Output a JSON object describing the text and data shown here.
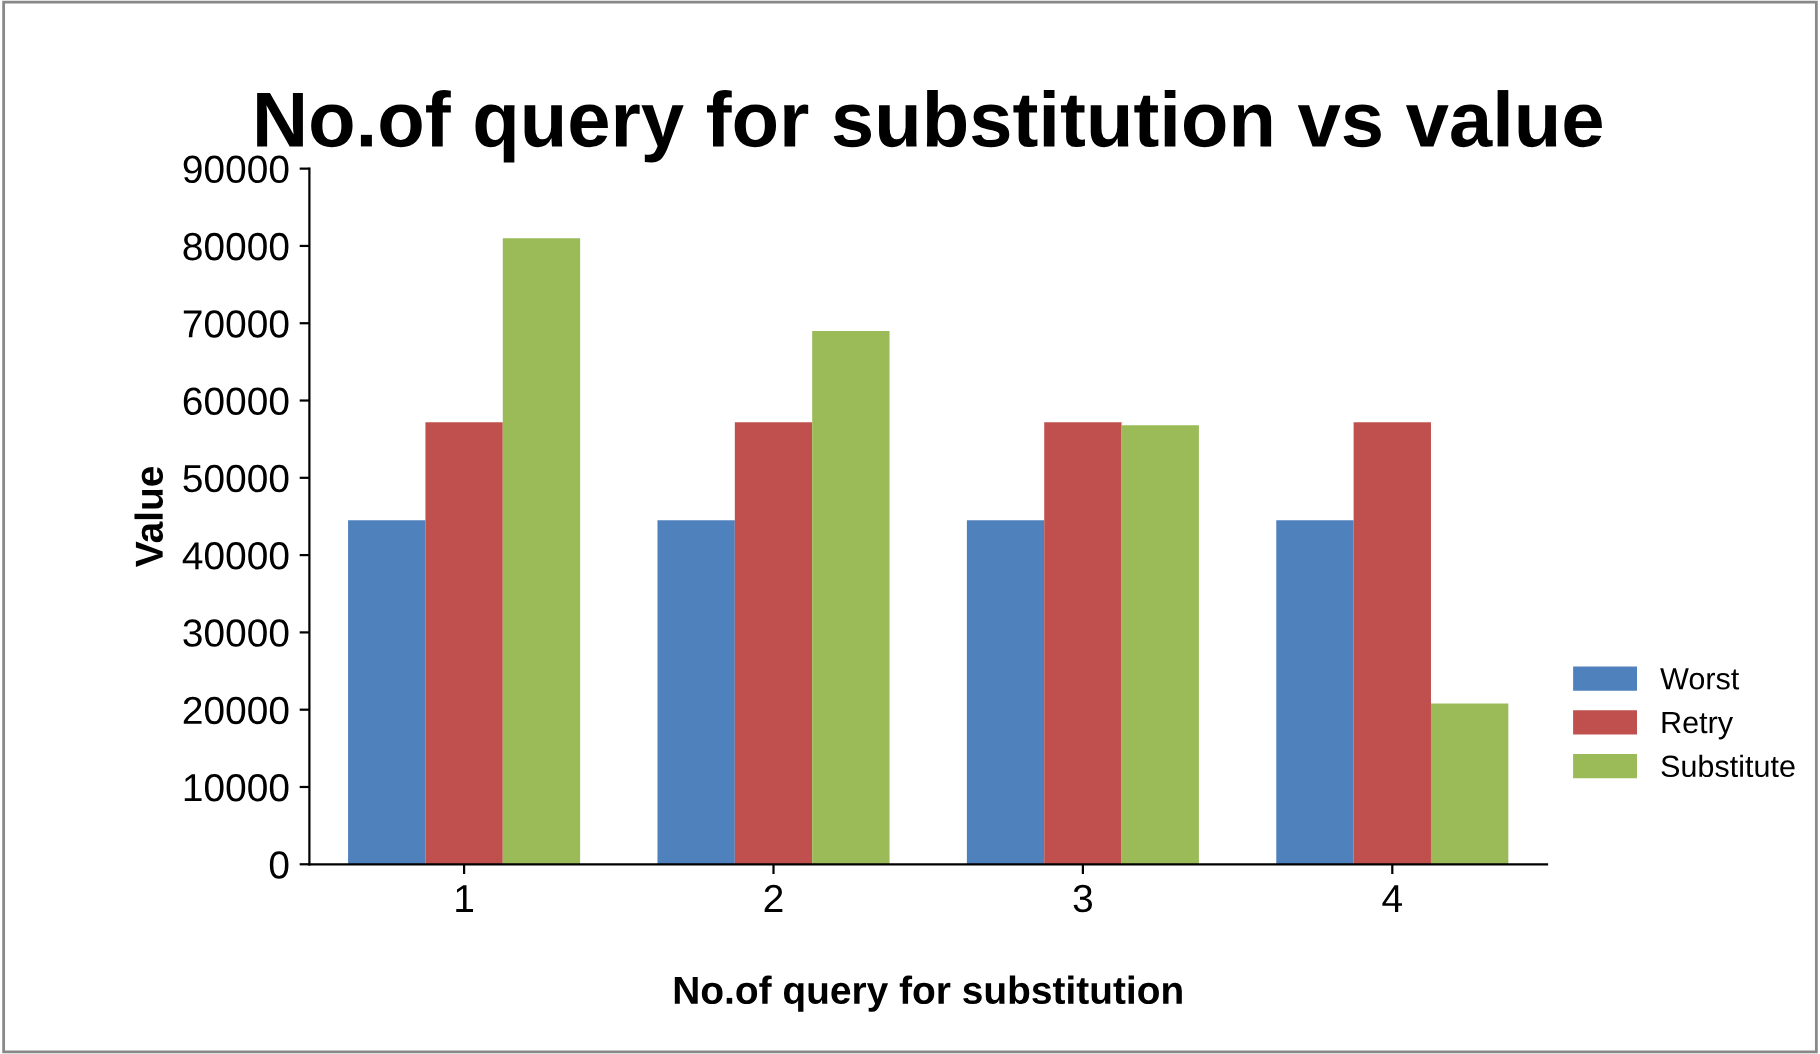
{
  "chart_data": {
    "type": "bar",
    "title": "No.of query for substitution vs value",
    "xlabel": "No.of query for substitution",
    "ylabel": "Value",
    "categories": [
      "1",
      "2",
      "3",
      "4"
    ],
    "series": [
      {
        "name": "Worst",
        "color": "#4f81bd",
        "values": [
          44500,
          44500,
          44500,
          44500
        ]
      },
      {
        "name": "Retry",
        "color": "#c0504d",
        "values": [
          57200,
          57200,
          57200,
          57200
        ]
      },
      {
        "name": "Substitute",
        "color": "#9bbb59",
        "values": [
          81000,
          69000,
          56800,
          20800
        ]
      }
    ],
    "ylim": [
      0,
      90000
    ],
    "yticks": [
      0,
      10000,
      20000,
      30000,
      40000,
      50000,
      60000,
      70000,
      80000,
      90000
    ],
    "grid": false,
    "legend": "right"
  }
}
